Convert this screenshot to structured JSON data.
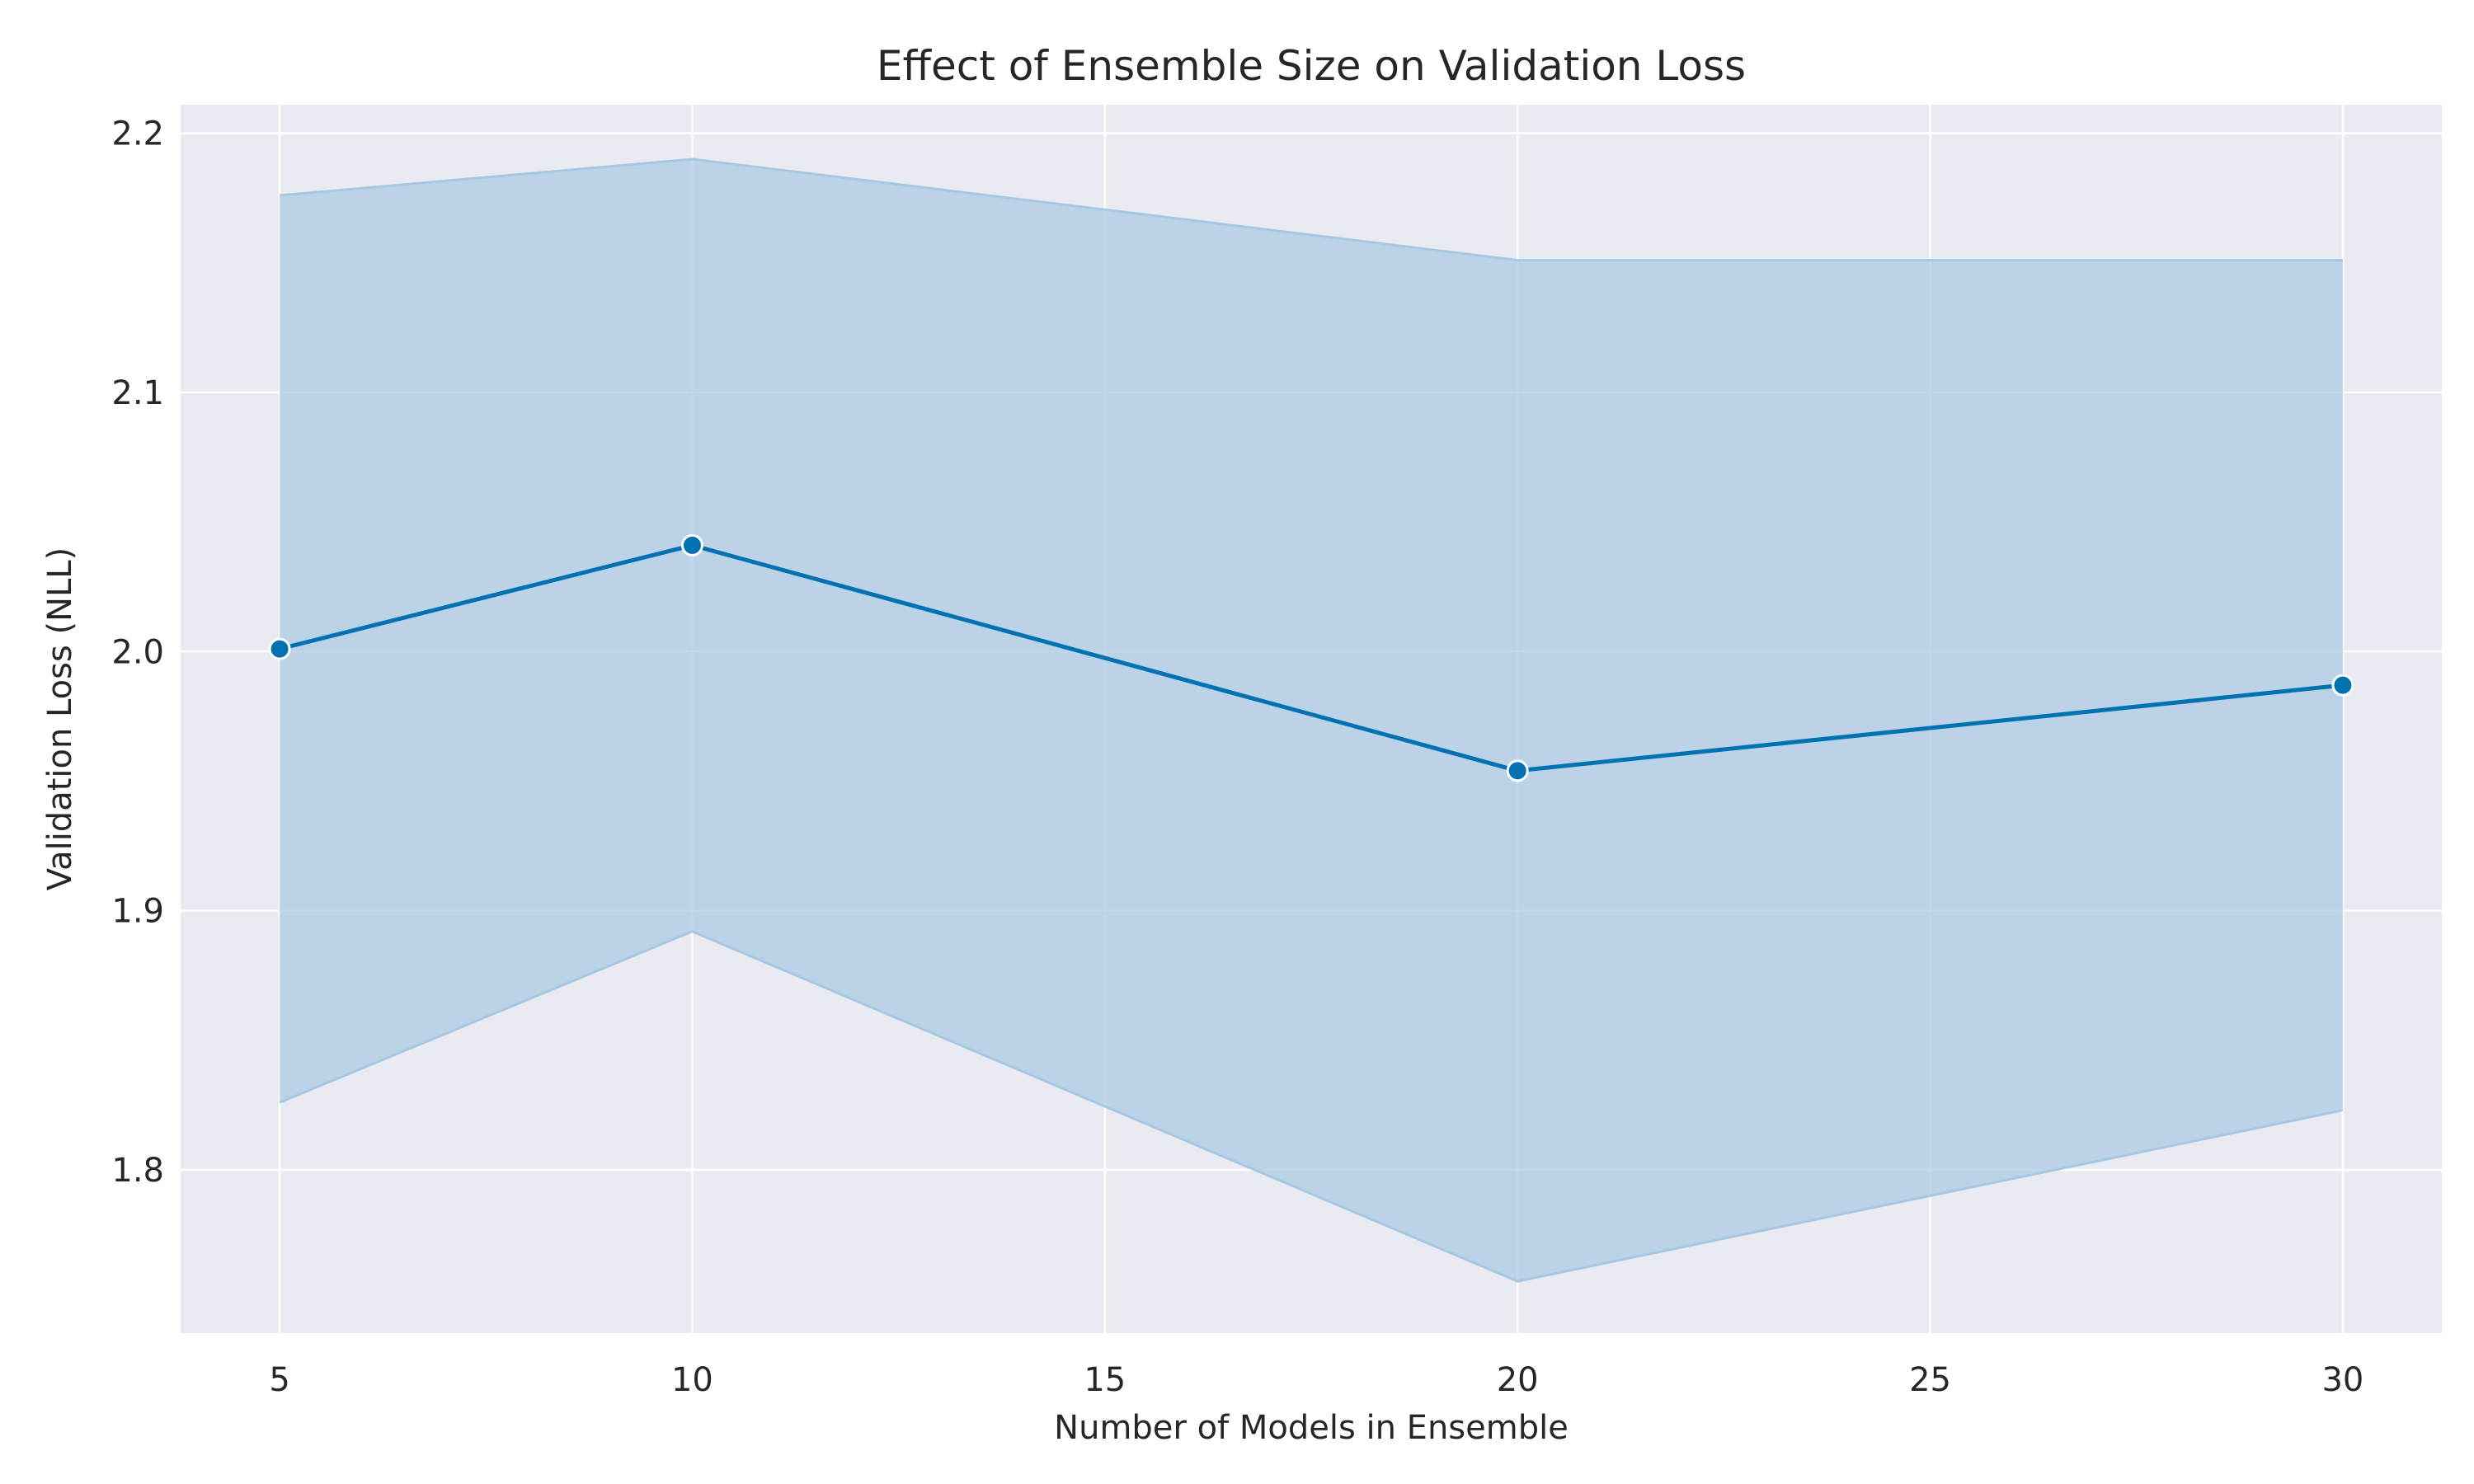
{
  "chart_data": {
    "type": "line",
    "title": "Effect of Ensemble Size on Validation Loss",
    "xlabel": "Number of Models in Ensemble",
    "ylabel": "Validation Loss (NLL)",
    "xlim": [
      3.8,
      31.2
    ],
    "ylim": [
      1.737,
      2.211
    ],
    "xticks": [
      5,
      10,
      15,
      20,
      25,
      30
    ],
    "yticks": [
      1.8,
      1.9,
      2.0,
      2.1,
      2.2
    ],
    "xtick_labels": [
      "5",
      "10",
      "15",
      "20",
      "25",
      "30"
    ],
    "ytick_labels": [
      "1.8",
      "1.9",
      "2.0",
      "2.1",
      "2.2"
    ],
    "grid": true,
    "series": [
      {
        "x": [
          5,
          10,
          20,
          30
        ],
        "y": [
          2.001,
          2.041,
          1.954,
          1.987
        ],
        "ci_lower": [
          1.826,
          1.892,
          1.757,
          1.823
        ],
        "ci_upper": [
          2.176,
          2.19,
          2.151,
          2.151
        ]
      }
    ],
    "colors": {
      "line": "#0072b2",
      "band": "#a6c8e2",
      "plot_background": "#eaeaf2",
      "grid": "#ffffff",
      "marker_edge": "#ffffff"
    }
  }
}
